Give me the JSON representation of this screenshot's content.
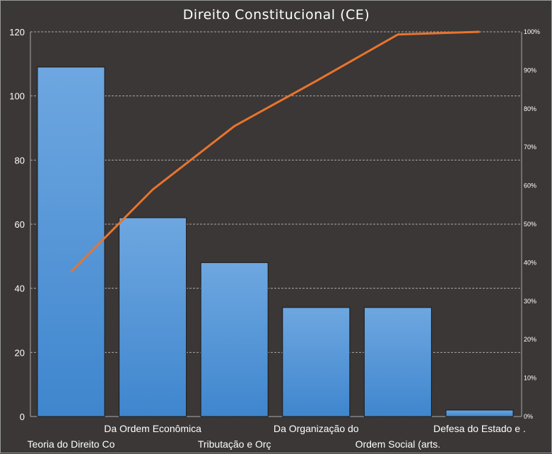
{
  "chart_data": {
    "type": "bar",
    "title": "Direito Constitucional (CE)",
    "categories": [
      "Teoria do Direito Co",
      "Da Ordem  Econômica",
      "Tributação e Orç",
      "Da Organização do",
      "Ordem Social (arts.",
      "Defesa do Estado e ."
    ],
    "series": [
      {
        "values": [
          109,
          62,
          48,
          34,
          34,
          2
        ]
      },
      {
        "values": [
          37.6,
          59.0,
          75.5,
          87.2,
          99.3,
          100
        ]
      }
    ],
    "ylim": [
      0,
      120
    ],
    "y_ticks": [
      0,
      20,
      40,
      60,
      80,
      100,
      120
    ],
    "y2lim": [
      0,
      100
    ],
    "y2_ticks": [
      "0%",
      "10%",
      "20%",
      "30%",
      "40%",
      "50%",
      "60%",
      "70%",
      "80%",
      "90%",
      "100%"
    ],
    "grid": true,
    "colors": {
      "background": "#3a3736",
      "bar_top": "#6ea7e0",
      "bar_bottom": "#3f86ce",
      "line": "#e9742e",
      "grid": "#a9a9a9",
      "text": "#ffffff"
    }
  }
}
